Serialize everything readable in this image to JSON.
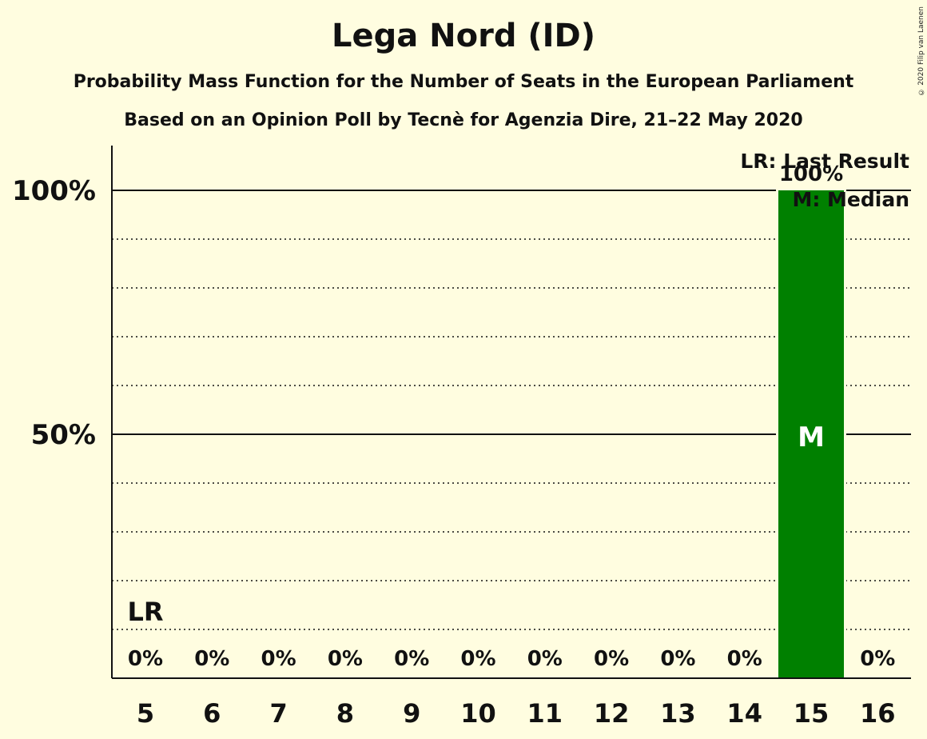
{
  "title": "Lega Nord (ID)",
  "subtitle_1": "Probability Mass Function for the Number of Seats in the European Parliament",
  "subtitle_2": "Based on an Opinion Poll by Tecnè for Agenzia Dire, 21–22 May 2020",
  "copyright": "© 2020 Filip van Laenen",
  "colors": {
    "background": "#fffde0",
    "bar": "#008000",
    "text": "#111111"
  },
  "chart_data": {
    "type": "bar",
    "categories": [
      "5",
      "6",
      "7",
      "8",
      "9",
      "10",
      "11",
      "12",
      "13",
      "14",
      "15",
      "16"
    ],
    "values": [
      0,
      0,
      0,
      0,
      0,
      0,
      0,
      0,
      0,
      0,
      100,
      0
    ],
    "value_labels": [
      "0%",
      "0%",
      "0%",
      "0%",
      "0%",
      "0%",
      "0%",
      "0%",
      "0%",
      "0%",
      "100%",
      "0%"
    ],
    "ylim": [
      0,
      110
    ],
    "y_ticks": [
      {
        "value": 50,
        "label": "50%"
      },
      {
        "value": 100,
        "label": "100%"
      }
    ],
    "minor_gridlines": [
      10,
      20,
      30,
      40,
      60,
      70,
      80,
      90
    ],
    "last_result": {
      "category": "5",
      "label": "LR"
    },
    "median": {
      "category": "15",
      "label": "M"
    },
    "legend": [
      "LR: Last Result",
      "M: Median"
    ],
    "legend_position": "top-right"
  }
}
